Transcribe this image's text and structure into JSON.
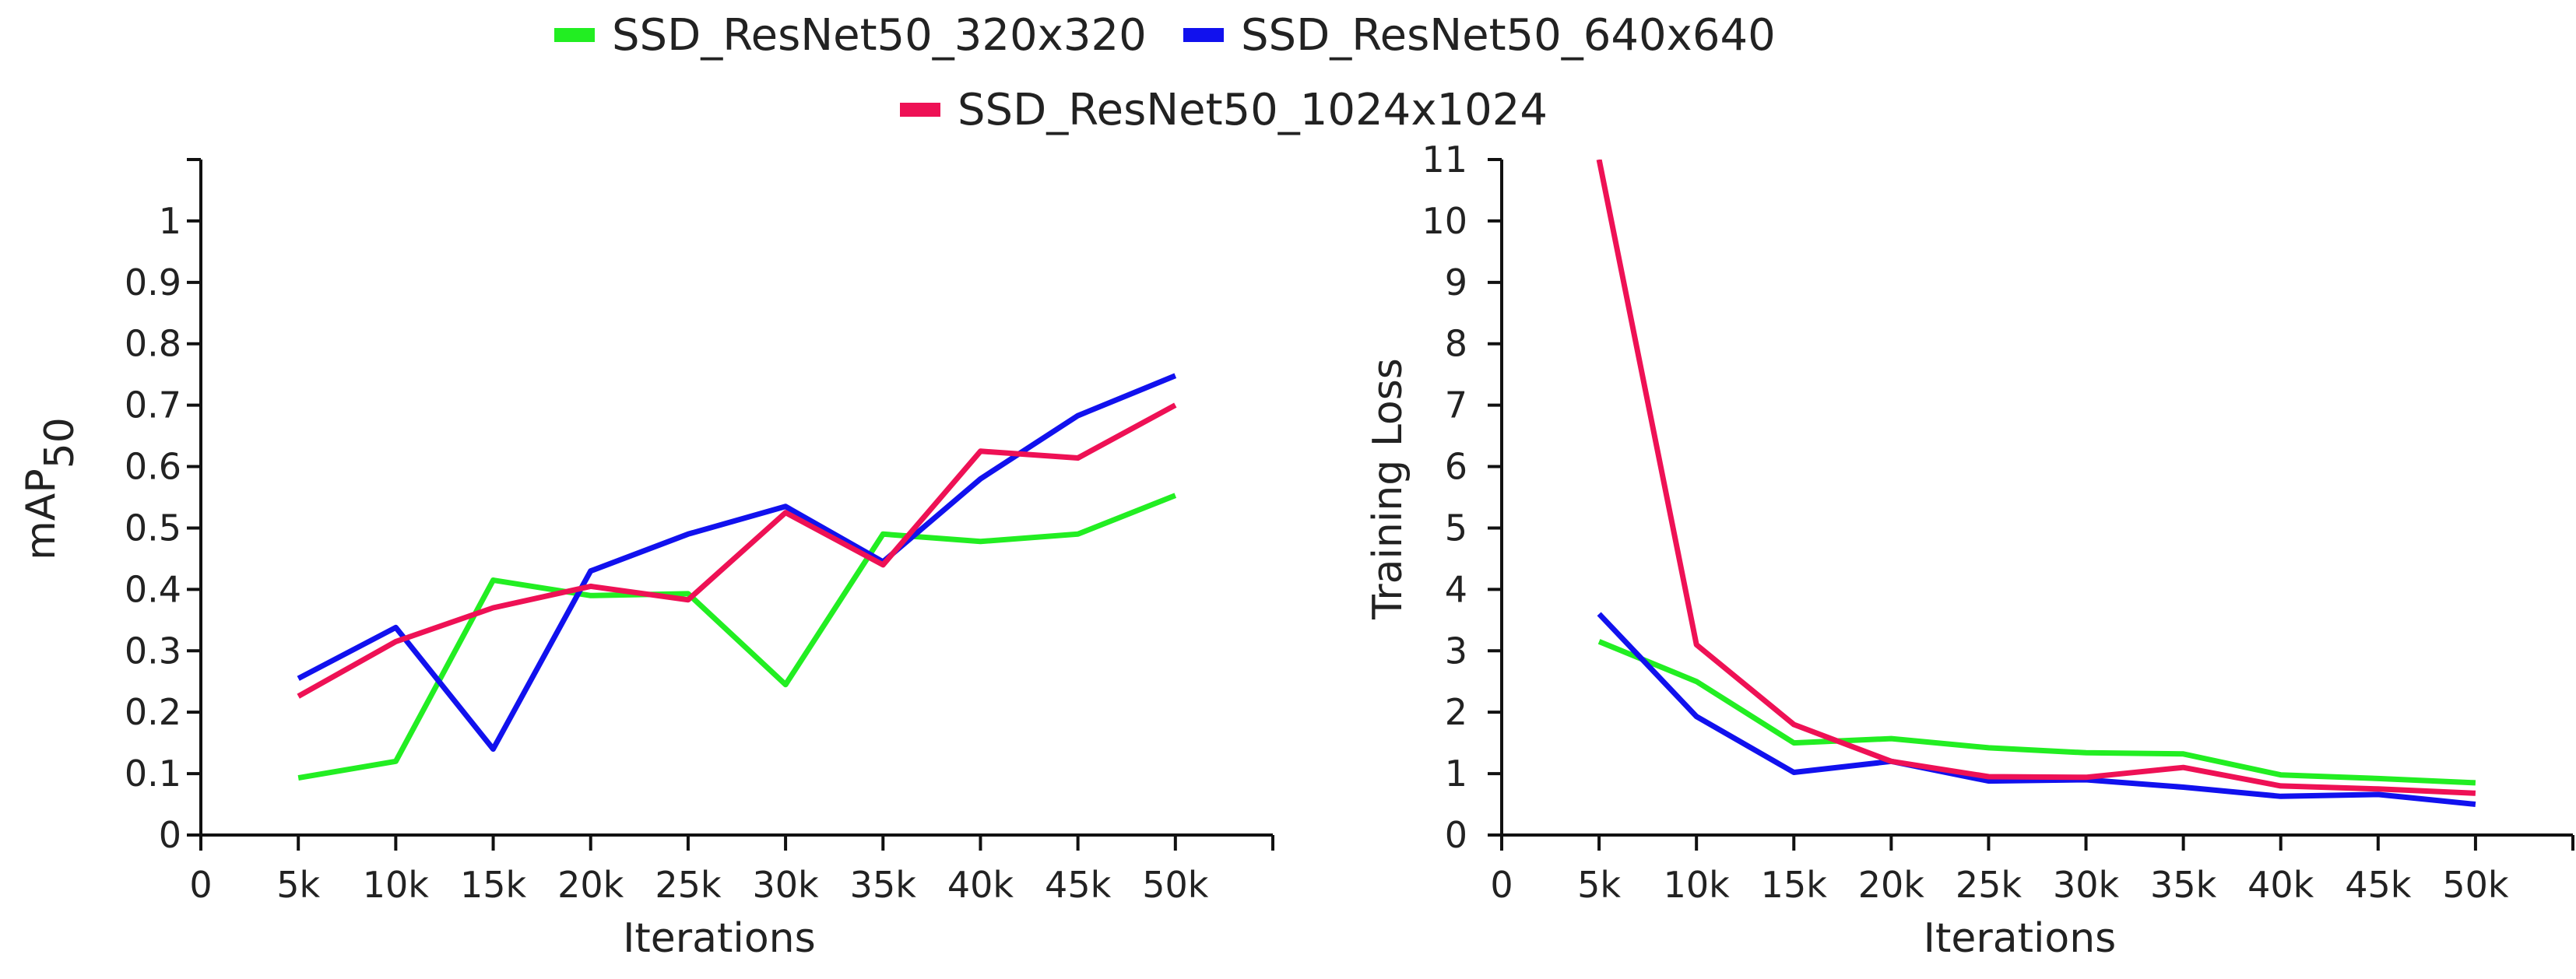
{
  "legend": [
    {
      "label": "SSD_ResNet50_320x320",
      "color": "#22ee22"
    },
    {
      "label": "SSD_ResNet50_640x640",
      "color": "#1111ee"
    },
    {
      "label": "SSD_ResNet50_1024x1024",
      "color": "#ee1155"
    }
  ],
  "chart_data": [
    {
      "type": "line",
      "title": "",
      "xlabel": "Iterations",
      "ylabel_main": "mAP",
      "ylabel_sub": "50",
      "x_ticks": [
        "0",
        "5k",
        "10k",
        "15k",
        "20k",
        "25k",
        "30k",
        "35k",
        "40k",
        "45k",
        "50k"
      ],
      "y_ticks": [
        "0",
        "0.1",
        "0.2",
        "0.3",
        "0.4",
        "0.5",
        "0.6",
        "0.7",
        "0.8",
        "0.9",
        "1"
      ],
      "xlim": [
        0,
        55
      ],
      "ylim": [
        0,
        1.1
      ],
      "x": [
        5,
        10,
        15,
        20,
        25,
        30,
        35,
        40,
        45,
        50
      ],
      "series": [
        {
          "name": "SSD_ResNet50_320x320",
          "values": [
            0.093,
            0.12,
            0.415,
            0.39,
            0.393,
            0.245,
            0.49,
            0.478,
            0.49,
            0.553
          ]
        },
        {
          "name": "SSD_ResNet50_640x640",
          "values": [
            0.255,
            0.338,
            0.14,
            0.43,
            0.49,
            0.535,
            0.445,
            0.58,
            0.683,
            0.748
          ]
        },
        {
          "name": "SSD_ResNet50_1024x1024",
          "values": [
            0.226,
            0.315,
            0.37,
            0.405,
            0.383,
            0.525,
            0.44,
            0.625,
            0.614,
            0.7
          ]
        }
      ]
    },
    {
      "type": "line",
      "title": "",
      "xlabel": "Iterations",
      "ylabel_main": "Training Loss",
      "ylabel_sub": "",
      "x_ticks": [
        "0",
        "5k",
        "10k",
        "15k",
        "20k",
        "25k",
        "30k",
        "35k",
        "40k",
        "45k",
        "50k"
      ],
      "y_ticks": [
        "0",
        "1",
        "2",
        "3",
        "4",
        "5",
        "6",
        "7",
        "8",
        "9",
        "10",
        "11"
      ],
      "xlim": [
        0,
        55
      ],
      "ylim": [
        0,
        11
      ],
      "x": [
        5,
        10,
        15,
        20,
        25,
        30,
        35,
        40,
        45,
        50
      ],
      "series": [
        {
          "name": "SSD_ResNet50_320x320",
          "values": [
            3.15,
            2.5,
            1.5,
            1.57,
            1.42,
            1.34,
            1.32,
            0.98,
            0.92,
            0.85
          ]
        },
        {
          "name": "SSD_ResNet50_640x640",
          "values": [
            3.6,
            1.93,
            1.02,
            1.2,
            0.88,
            0.9,
            0.78,
            0.63,
            0.66,
            0.5
          ]
        },
        {
          "name": "SSD_ResNet50_1024x1024",
          "values": [
            11.0,
            3.1,
            1.8,
            1.2,
            0.95,
            0.94,
            1.1,
            0.8,
            0.75,
            0.68
          ]
        }
      ]
    }
  ]
}
